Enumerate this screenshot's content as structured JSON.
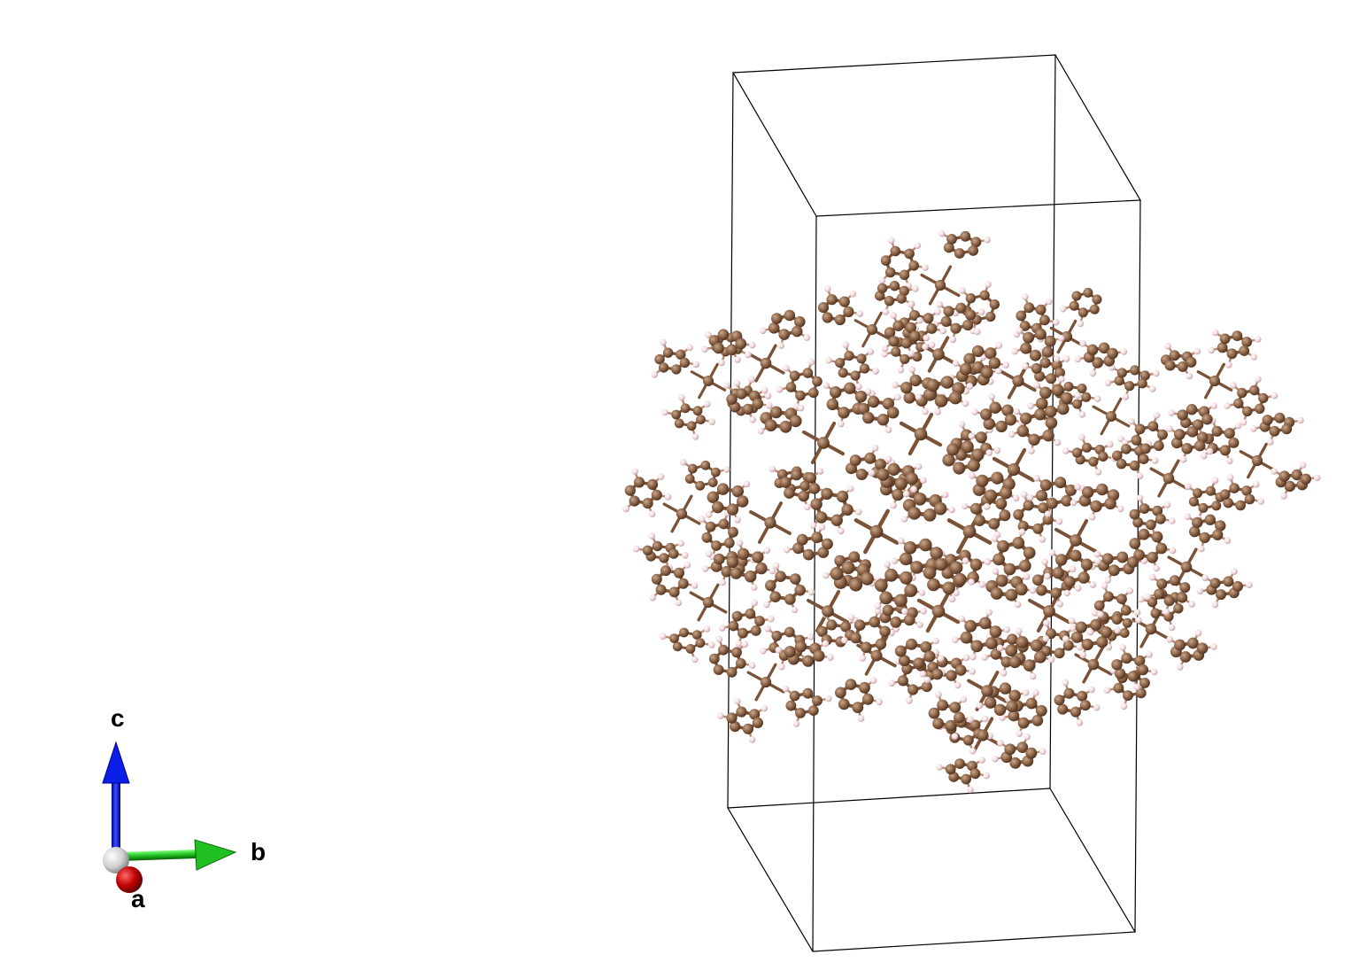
{
  "axes": {
    "c_label": "c",
    "b_label": "b",
    "a_label": "a"
  },
  "colors": {
    "background": "#ffffff",
    "cell_edge": "#000000",
    "carbon_atom": "#8b6347",
    "carbon_bond": "#7a5238",
    "hydrogen_atom": "#f2d8dc",
    "axis_c": "#0a1ee6",
    "axis_b": "#20c020",
    "axis_a": "#c00000",
    "axis_origin": "#d8d8d8"
  },
  "structure": {
    "elements": [
      "C",
      "H"
    ],
    "representation": "ball-and-stick",
    "unit_cell_shown": true
  }
}
